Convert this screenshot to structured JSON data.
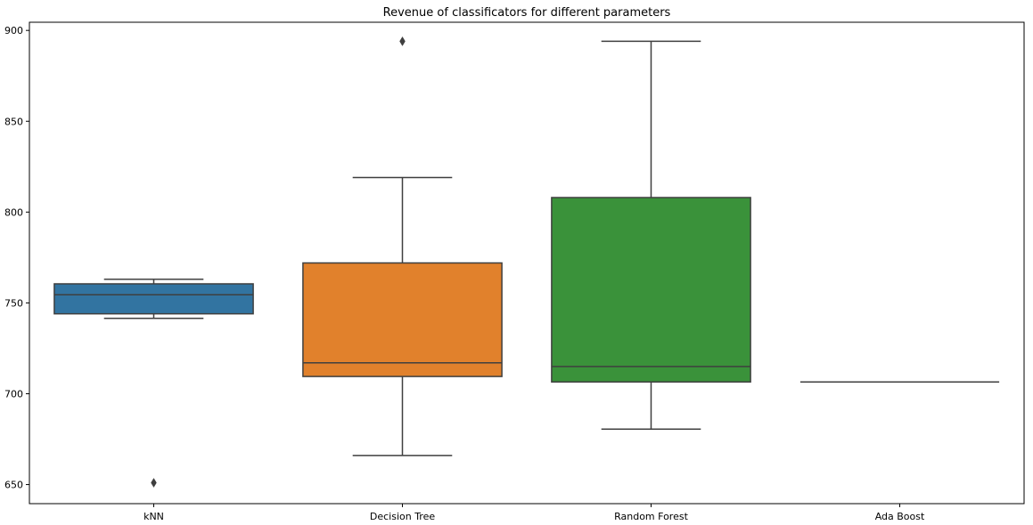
{
  "chart_data": {
    "type": "box",
    "title": "Revenue of classificators for different parameters",
    "xlabel": "",
    "ylabel": "",
    "categories": [
      "kNN",
      "Decision Tree",
      "Random Forest",
      "Ada Boost"
    ],
    "ylim": [
      639.5,
      904.5
    ],
    "yticks": [
      650,
      700,
      750,
      800,
      850,
      900
    ],
    "grid": false,
    "legend": "none",
    "boxes": [
      {
        "category": "kNN",
        "whisker_low": 741.5,
        "q1": 744,
        "median": 754.5,
        "q3": 760.5,
        "whisker_high": 763,
        "outliers": [
          651
        ],
        "color": "#3274a1"
      },
      {
        "category": "Decision Tree",
        "whisker_low": 666,
        "q1": 709.5,
        "median": 717,
        "q3": 772,
        "whisker_high": 819,
        "outliers": [
          894
        ],
        "color": "#e1812c"
      },
      {
        "category": "Random Forest",
        "whisker_low": 680.5,
        "q1": 706.5,
        "median": 715,
        "q3": 808,
        "whisker_high": 894,
        "outliers": [],
        "color": "#3a923a"
      },
      {
        "category": "Ada Boost",
        "whisker_low": 706.5,
        "q1": 706.5,
        "median": 706.5,
        "q3": 706.5,
        "whisker_high": 706.5,
        "outliers": [],
        "color": "#c03d3e"
      }
    ]
  }
}
